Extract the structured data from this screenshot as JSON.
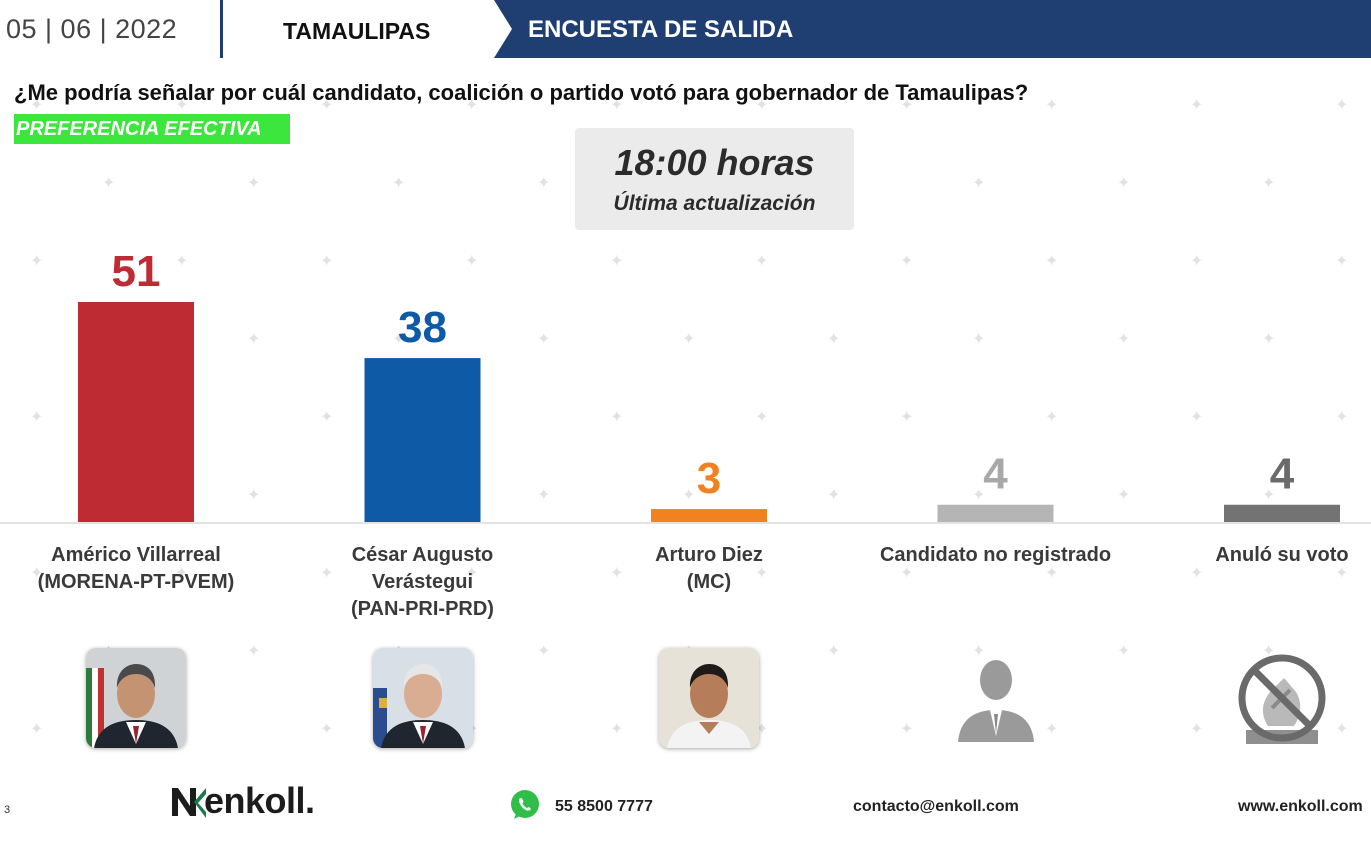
{
  "header": {
    "date": "05 | 06 | 2022",
    "state": "TAMAULIPAS",
    "title": "ENCUESTA DE SALIDA"
  },
  "question": "¿Me podría señalar por cuál candidato, coalición o partido votó para gobernador de Tamaulipas?",
  "tag": "PREFERENCIA EFECTIVA",
  "update": {
    "time": "18:00 horas",
    "label": "Última actualización"
  },
  "chart_data": {
    "type": "bar",
    "title": "",
    "xlabel": "",
    "ylabel": "",
    "ylim": [
      0,
      51
    ],
    "grid": false,
    "categories": [
      {
        "name": "Américo Villarreal",
        "party": "(MORENA-PT-PVEM)",
        "value": 51,
        "color": "#be2b32",
        "label_color": "#be2b32",
        "image": "candidate-photo"
      },
      {
        "name": "César Augusto Verástegui",
        "party": "(PAN-PRI-PRD)",
        "value": 38,
        "color": "#0f5aa6",
        "label_color": "#0f5aa6",
        "image": "candidate-photo"
      },
      {
        "name": "Arturo Diez",
        "party": "(MC)",
        "value": 3,
        "color": "#f08220",
        "label_color": "#f08220",
        "image": "candidate-photo"
      },
      {
        "name": "Candidato no registrado",
        "party": "",
        "value": 4,
        "color": "#b5b5b5",
        "label_color": "#a8a8a8",
        "image": "person-silhouette-icon"
      },
      {
        "name": "Anuló su voto",
        "party": "",
        "value": 4,
        "color": "#737373",
        "label_color": "#6b6b6b",
        "image": "null-vote-icon"
      }
    ]
  },
  "footer": {
    "page": "3",
    "logo": "enkoll.",
    "phone": "55 8500 7777",
    "email": "contacto@enkoll.com",
    "web": "www.enkoll.com"
  }
}
